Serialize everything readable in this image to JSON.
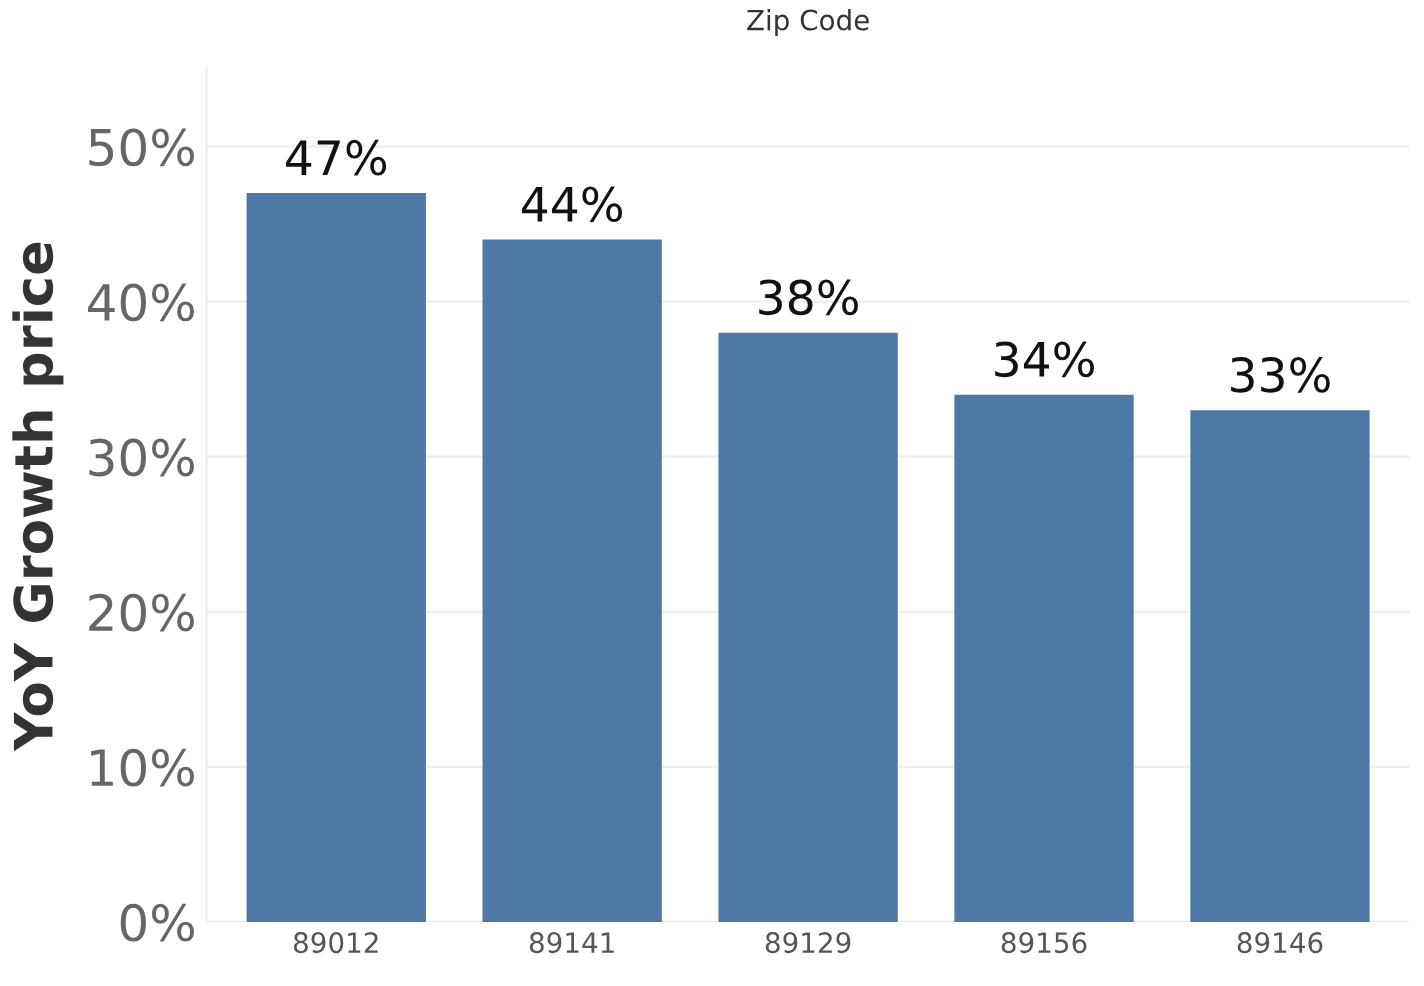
{
  "chart_data": {
    "type": "bar",
    "xlabel": "Zip Code",
    "ylabel": "YoY Growth price",
    "categories": [
      "89012",
      "89141",
      "89129",
      "89156",
      "89146"
    ],
    "values": [
      47,
      44,
      38,
      34,
      33
    ],
    "value_labels": [
      "47%",
      "44%",
      "38%",
      "34%",
      "33%"
    ],
    "color": "#4e79a7",
    "ylim": [
      0,
      55
    ],
    "yticks": [
      {
        "value": 0,
        "label": "0%"
      },
      {
        "value": 10,
        "label": "10%"
      },
      {
        "value": 20,
        "label": "20%"
      },
      {
        "value": 30,
        "label": "30%"
      },
      {
        "value": 40,
        "label": "40%"
      },
      {
        "value": 50,
        "label": "50%"
      }
    ],
    "grid": "y"
  }
}
